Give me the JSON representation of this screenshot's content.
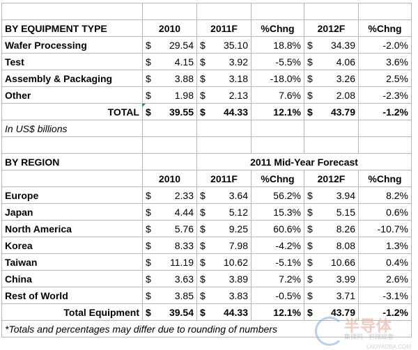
{
  "equipment": {
    "header": [
      "BY EQUIPMENT TYPE",
      "2010",
      "2011F",
      "%Chng",
      "2012F",
      "%Chng"
    ],
    "rows": [
      {
        "label": "Wafer Processing",
        "y2010": "29.54",
        "y2011": "35.10",
        "chg1": "18.8%",
        "y2012": "34.39",
        "chg2": "-2.0%"
      },
      {
        "label": "Test",
        "y2010": "4.15",
        "y2011": "3.92",
        "chg1": "-5.5%",
        "y2012": "4.06",
        "chg2": "3.6%"
      },
      {
        "label": "Assembly & Packaging",
        "y2010": "3.88",
        "y2011": "3.18",
        "chg1": "-18.0%",
        "y2012": "3.26",
        "chg2": "2.5%"
      },
      {
        "label": "Other",
        "y2010": "1.98",
        "y2011": "2.13",
        "chg1": "7.6%",
        "y2012": "2.08",
        "chg2": "-2.3%"
      }
    ],
    "total": {
      "label": "TOTAL",
      "y2010": "39.55",
      "y2011": "44.33",
      "chg1": "12.1%",
      "y2012": "43.79",
      "chg2": "-1.2%"
    },
    "unit_note": "In US$ billions"
  },
  "region": {
    "title": "BY REGION",
    "forecast_label": "2011 Mid-Year Forecast",
    "header": [
      "2010",
      "2011F",
      "%Chng",
      "2012F",
      "%Chng"
    ],
    "rows": [
      {
        "label": "Europe",
        "y2010": "2.33",
        "y2011": "3.64",
        "chg1": "56.2%",
        "y2012": "3.94",
        "chg2": "8.2%"
      },
      {
        "label": "Japan",
        "y2010": "4.44",
        "y2011": "5.12",
        "chg1": "15.3%",
        "y2012": "5.15",
        "chg2": "0.6%"
      },
      {
        "label": "North America",
        "y2010": "5.76",
        "y2011": "9.25",
        "chg1": "60.6%",
        "y2012": "8.26",
        "chg2": "-10.7%"
      },
      {
        "label": "Korea",
        "y2010": "8.33",
        "y2011": "7.98",
        "chg1": "-4.2%",
        "y2012": "8.08",
        "chg2": "1.3%"
      },
      {
        "label": "Taiwan",
        "y2010": "11.19",
        "y2011": "10.62",
        "chg1": "-5.1%",
        "y2012": "10.66",
        "chg2": "0.4%"
      },
      {
        "label": "China",
        "y2010": "3.63",
        "y2011": "3.89",
        "chg1": "7.2%",
        "y2012": "3.99",
        "chg2": "2.6%"
      },
      {
        "label": "Rest of World",
        "y2010": "3.85",
        "y2011": "3.83",
        "chg1": "-0.5%",
        "y2012": "3.71",
        "chg2": "-3.1%"
      }
    ],
    "total": {
      "label": "Total Equipment",
      "y2010": "39.54",
      "y2011": "44.33",
      "chg1": "12.1%",
      "y2012": "43.79",
      "chg2": "-1.2%"
    }
  },
  "currency_symbol": "$",
  "footnote": "*Totals and percentages may differ due to rounding of numbers",
  "watermark": {
    "brand": "半导体",
    "tagline": "集微网 · 积微成者",
    "url": "LAOYAOBA.COM"
  }
}
